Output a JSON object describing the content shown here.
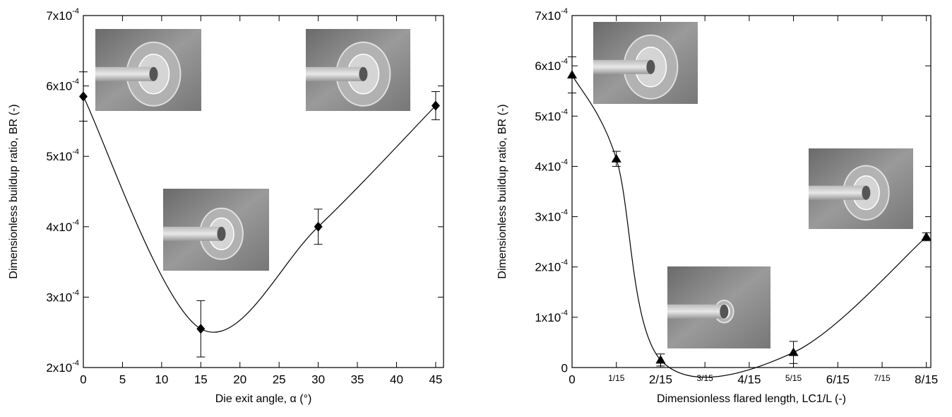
{
  "chart_data": [
    {
      "type": "line",
      "marker": "diamond",
      "color": "#000000",
      "x_label": "Die exit angle, α (°)",
      "y_label": "Dimensionless buildup ratio, BR (-)",
      "x": [
        0,
        15,
        30,
        45
      ],
      "values": [
        0.000585,
        0.000255,
        0.0004,
        0.000572
      ],
      "errors": [
        3.5e-05,
        4e-05,
        2.5e-05,
        2e-05
      ],
      "xlim": [
        0,
        46
      ],
      "ylim": [
        0.0002,
        0.0007
      ],
      "xticks": [
        0,
        5,
        10,
        15,
        20,
        25,
        30,
        35,
        40,
        45
      ],
      "yticks": [
        {
          "value": 0.0002,
          "label": "2x10-4"
        },
        {
          "value": 0.0003,
          "label": "3x10-4"
        },
        {
          "value": 0.0004,
          "label": "4x10-4"
        },
        {
          "value": 0.0005,
          "label": "5x10-4"
        },
        {
          "value": 0.0006,
          "label": "6x10-4"
        },
        {
          "value": 0.0007,
          "label": "7x10-4"
        }
      ]
    },
    {
      "type": "line",
      "marker": "triangle",
      "color": "#000000",
      "x_label": "Dimensionless flared length, LC1/L (-)",
      "y_label": "Dimensionless buildup ratio, BR (-)",
      "x": [
        0,
        0.0667,
        0.1333,
        0.3333,
        0.5333
      ],
      "values": [
        0.000582,
        0.000415,
        1.5e-05,
        3e-05,
        0.00026
      ],
      "errors": [
        3.6e-05,
        1.5e-05,
        1.2e-05,
        2.2e-05,
        8e-06
      ],
      "xlim": [
        0,
        0.54
      ],
      "ylim": [
        0,
        0.0007
      ],
      "xticks": [
        0,
        {
          "value": 0.0667,
          "label": "1/15"
        },
        {
          "value": 0.1333,
          "label": "2/15"
        },
        {
          "value": 0.2,
          "label": "3/15"
        },
        {
          "value": 0.2667,
          "label": "4/15"
        },
        {
          "value": 0.3333,
          "label": "5/15"
        },
        {
          "value": 0.4,
          "label": "6/15"
        },
        {
          "value": 0.4667,
          "label": "7/15"
        },
        {
          "value": 0.5333,
          "label": "8/15"
        }
      ],
      "yticks": [
        0,
        {
          "value": 0.0001,
          "label": "1x10-4"
        },
        {
          "value": 0.0002,
          "label": "2x10-4"
        },
        {
          "value": 0.0003,
          "label": "3x10-4"
        },
        {
          "value": 0.0004,
          "label": "4x10-4"
        },
        {
          "value": 0.0005,
          "label": "5x10-4"
        },
        {
          "value": 0.0006,
          "label": "6x10-4"
        },
        {
          "value": 0.0007,
          "label": "7x10-4"
        }
      ]
    }
  ]
}
